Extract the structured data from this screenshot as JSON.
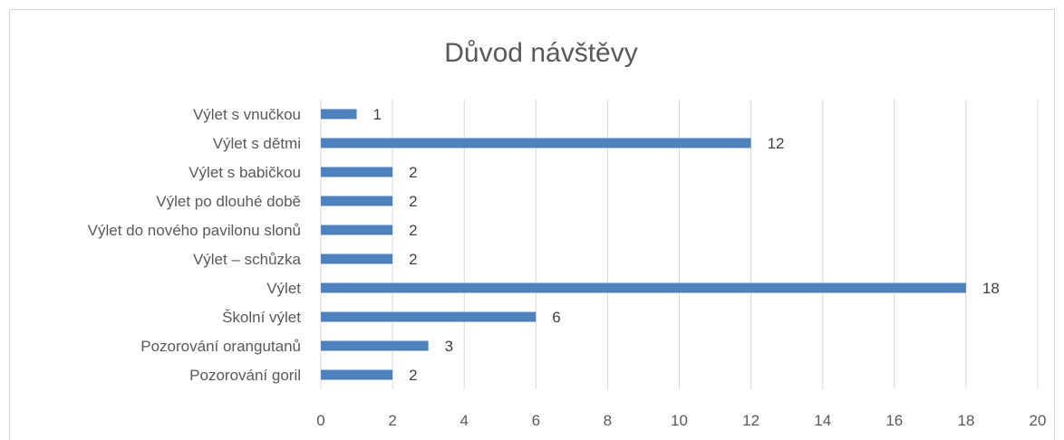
{
  "chart_data": {
    "type": "bar",
    "orientation": "horizontal",
    "title": "Důvod návštěvy",
    "categories": [
      "Výlet s vnučkou",
      "Výlet s dětmi",
      "Výlet s babičkou",
      "Výlet po dlouhé době",
      "Výlet do nového pavilonu slonů",
      "Výlet – schůzka",
      "Výlet",
      "Školní výlet",
      "Pozorování orangutanů",
      "Pozorování goril"
    ],
    "values": [
      1,
      12,
      2,
      2,
      2,
      2,
      18,
      6,
      3,
      2
    ],
    "xlim": [
      0,
      20
    ],
    "x_ticks": [
      "0",
      "2",
      "4",
      "6",
      "8",
      "10",
      "12",
      "14",
      "16",
      "18",
      "20"
    ],
    "grid": true,
    "data_labels": true,
    "legend": "none",
    "bar_color": "#4f81bd"
  }
}
